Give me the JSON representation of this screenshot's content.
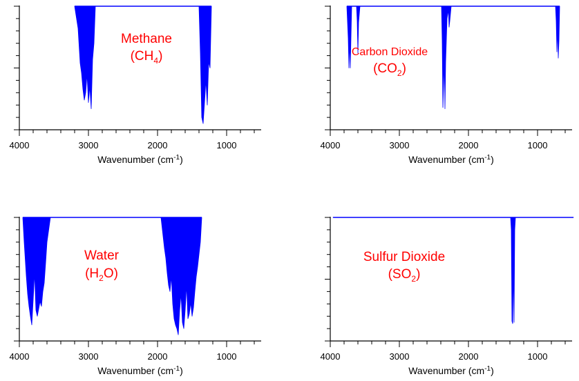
{
  "chart_data": [
    {
      "type": "area",
      "xlabel": "Wavenumber (cm",
      "xlabel_sup": "-1",
      "xlabel_tail": ")",
      "xlim": [
        4000,
        500
      ],
      "xticks": [
        4000,
        3000,
        2000,
        1000
      ],
      "ylim": [
        0,
        1
      ],
      "grid": false,
      "color": "#0000ff",
      "label_color": "#ff0000",
      "label_lines": [
        {
          "parts": [
            {
              "t": "Methane"
            }
          ]
        },
        {
          "parts": [
            {
              "t": "(CH"
            },
            {
              "t": "4",
              "sub": true
            },
            {
              "t": ")"
            }
          ]
        }
      ],
      "series": [
        {
          "x": [
            3200,
            3150,
            3120,
            3100,
            3080,
            3060,
            3040,
            3020,
            3000,
            2980,
            2960,
            2940,
            2920,
            2900,
            1400,
            1380,
            1360,
            1340,
            1320,
            1300,
            1280,
            1260,
            1240,
            1220
          ],
          "y": [
            1.0,
            0.82,
            0.54,
            0.46,
            0.33,
            0.24,
            0.3,
            0.45,
            0.22,
            0.35,
            0.17,
            0.57,
            0.7,
            1.0,
            1.0,
            0.62,
            0.1,
            0.05,
            0.22,
            0.4,
            0.2,
            0.55,
            0.5,
            1.0
          ]
        }
      ]
    },
    {
      "type": "area",
      "xlabel": "Wavenumber (cm",
      "xlabel_sup": "-1",
      "xlabel_tail": ")",
      "xlim": [
        4000,
        500
      ],
      "xticks": [
        4000,
        3000,
        2000,
        1000
      ],
      "ylim": [
        0,
        1
      ],
      "grid": false,
      "color": "#0000ff",
      "label_color": "#ff0000",
      "label_lines": [
        {
          "parts": [
            {
              "t": "Carbon Dioxide"
            }
          ],
          "small": true
        },
        {
          "parts": [
            {
              "t": "(CO"
            },
            {
              "t": "2",
              "sub": true
            },
            {
              "t": ")"
            }
          ]
        }
      ],
      "series": [
        {
          "x": [
            3760,
            3740,
            3730,
            3720,
            3710,
            3690,
            3620,
            3610,
            3600,
            3590,
            3570,
            2390,
            2380,
            2370,
            2350,
            2340,
            2330,
            2310,
            2290,
            2280,
            2270,
            2250,
            740,
            730,
            720,
            710,
            700,
            690,
            680
          ],
          "y": [
            1.0,
            0.74,
            0.5,
            0.72,
            0.5,
            1.0,
            1.0,
            0.88,
            0.62,
            0.87,
            1.0,
            1.0,
            0.72,
            0.18,
            0.55,
            0.17,
            0.55,
            0.9,
            0.97,
            0.83,
            0.88,
            1.0,
            1.0,
            0.88,
            0.63,
            0.82,
            0.58,
            0.72,
            1.0
          ]
        }
      ]
    },
    {
      "type": "area",
      "xlabel": "Wavenumber (cm",
      "xlabel_sup": "-1",
      "xlabel_tail": ")",
      "xlim": [
        4000,
        500
      ],
      "xticks": [
        4000,
        3000,
        2000,
        1000
      ],
      "ylim": [
        0,
        1
      ],
      "grid": false,
      "color": "#0000ff",
      "label_color": "#ff0000",
      "label_lines": [
        {
          "parts": [
            {
              "t": "Water"
            }
          ]
        },
        {
          "parts": [
            {
              "t": "(H"
            },
            {
              "t": "2",
              "sub": true
            },
            {
              "t": "O)"
            }
          ]
        }
      ],
      "series": [
        {
          "x": [
            3950,
            3930,
            3900,
            3880,
            3860,
            3840,
            3820,
            3800,
            3780,
            3760,
            3740,
            3700,
            3680,
            3660,
            3640,
            3620,
            3600,
            3550,
            1950,
            1920,
            1900,
            1880,
            1860,
            1840,
            1820,
            1800,
            1780,
            1760,
            1740,
            1720,
            1700,
            1680,
            1660,
            1640,
            1620,
            1600,
            1580,
            1560,
            1540,
            1520,
            1500,
            1480,
            1460,
            1440,
            1420,
            1400,
            1380,
            1360
          ],
          "y": [
            1.0,
            0.8,
            0.53,
            0.38,
            0.28,
            0.2,
            0.13,
            0.33,
            0.55,
            0.25,
            0.2,
            0.32,
            0.28,
            0.4,
            0.47,
            0.63,
            0.8,
            1.0,
            1.0,
            0.85,
            0.75,
            0.67,
            0.55,
            0.45,
            0.4,
            0.52,
            0.3,
            0.18,
            0.13,
            0.1,
            0.05,
            0.25,
            0.38,
            0.15,
            0.1,
            0.25,
            0.45,
            0.18,
            0.22,
            0.31,
            0.2,
            0.27,
            0.4,
            0.52,
            0.6,
            0.7,
            0.8,
            1.0
          ]
        }
      ]
    },
    {
      "type": "area",
      "xlabel": "Wavenumber (cm",
      "xlabel_sup": "-1",
      "xlabel_tail": ")",
      "xlim": [
        4000,
        500
      ],
      "xticks": [
        4000,
        3000,
        2000,
        1000
      ],
      "ylim": [
        0,
        1
      ],
      "grid": false,
      "color": "#0000ff",
      "label_color": "#ff0000",
      "label_lines": [
        {
          "parts": [
            {
              "t": "Sulfur Dioxide"
            }
          ]
        },
        {
          "parts": [
            {
              "t": "(SO"
            },
            {
              "t": "2",
              "sub": true
            },
            {
              "t": ")"
            }
          ]
        }
      ],
      "series": [
        {
          "x": [
            3960,
            1390,
            1380,
            1370,
            1360,
            1350,
            1340,
            1330,
            1320,
            480
          ],
          "y": [
            1.0,
            1.0,
            0.9,
            0.16,
            0.14,
            0.6,
            0.15,
            0.9,
            1.0,
            1.0
          ]
        }
      ]
    }
  ]
}
